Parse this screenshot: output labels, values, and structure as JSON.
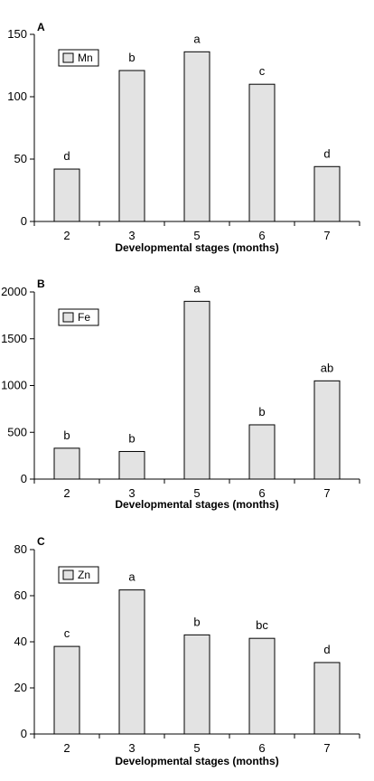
{
  "chart_data": [
    {
      "type": "bar",
      "panel": "A",
      "categories": [
        "2",
        "3",
        "5",
        "6",
        "7"
      ],
      "series": [
        {
          "name": "Mn",
          "values": [
            42,
            121,
            136,
            110,
            44
          ]
        }
      ],
      "annotations": [
        "d",
        "b",
        "a",
        "c",
        "d"
      ],
      "xlabel": "Developmental stages  (months)",
      "ylabel": "",
      "ylim": [
        0,
        150
      ],
      "yticks": [
        "0",
        "50",
        "100",
        "150"
      ],
      "legend": "top-left",
      "bar_color": "#e3e3e3"
    },
    {
      "type": "bar",
      "panel": "B",
      "categories": [
        "2",
        "3",
        "5",
        "6",
        "7"
      ],
      "series": [
        {
          "name": "Fe",
          "values": [
            330,
            295,
            1900,
            580,
            1050
          ]
        }
      ],
      "annotations": [
        "b",
        "b",
        "a",
        "b",
        "ab"
      ],
      "xlabel": "Developmental stages  (months)",
      "ylabel": "",
      "ylim": [
        0,
        2000
      ],
      "yticks": [
        "0",
        "500",
        "1000",
        "1500",
        "2000"
      ],
      "legend": "top-left",
      "bar_color": "#e3e3e3"
    },
    {
      "type": "bar",
      "panel": "C",
      "categories": [
        "2",
        "3",
        "5",
        "6",
        "7"
      ],
      "series": [
        {
          "name": "Zn",
          "values": [
            38,
            62.5,
            43,
            41.5,
            31
          ]
        }
      ],
      "annotations": [
        "c",
        "a",
        "b",
        "bc",
        "d"
      ],
      "xlabel": "Developmental stages  (months)",
      "ylabel": "",
      "ylim": [
        0,
        80
      ],
      "yticks": [
        "0",
        "20",
        "40",
        "60",
        "80"
      ],
      "legend": "top-left",
      "bar_color": "#e3e3e3"
    }
  ]
}
